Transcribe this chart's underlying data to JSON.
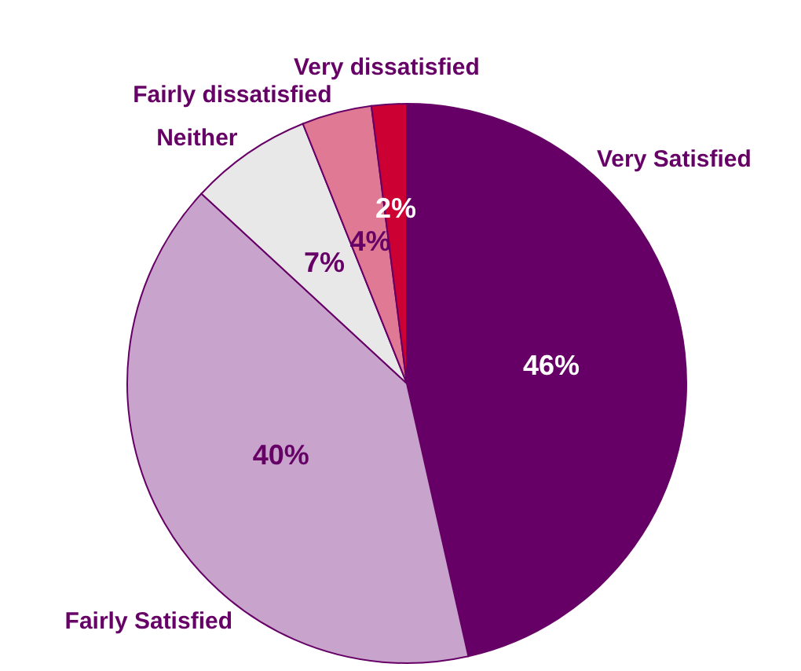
{
  "chart_data": {
    "type": "pie",
    "categories": [
      "Very Satisfied",
      "Fairly Satisfied",
      "Neither",
      "Fairly dissatisfied",
      "Very dissatisfied"
    ],
    "values": [
      46,
      40,
      7,
      4,
      2
    ],
    "colors": [
      "#660066",
      "#c8a4cc",
      "#e8e8e8",
      "#e07a94",
      "#cc0033"
    ],
    "value_labels": [
      "46%",
      "40%",
      "7%",
      "4%",
      "2%"
    ]
  }
}
